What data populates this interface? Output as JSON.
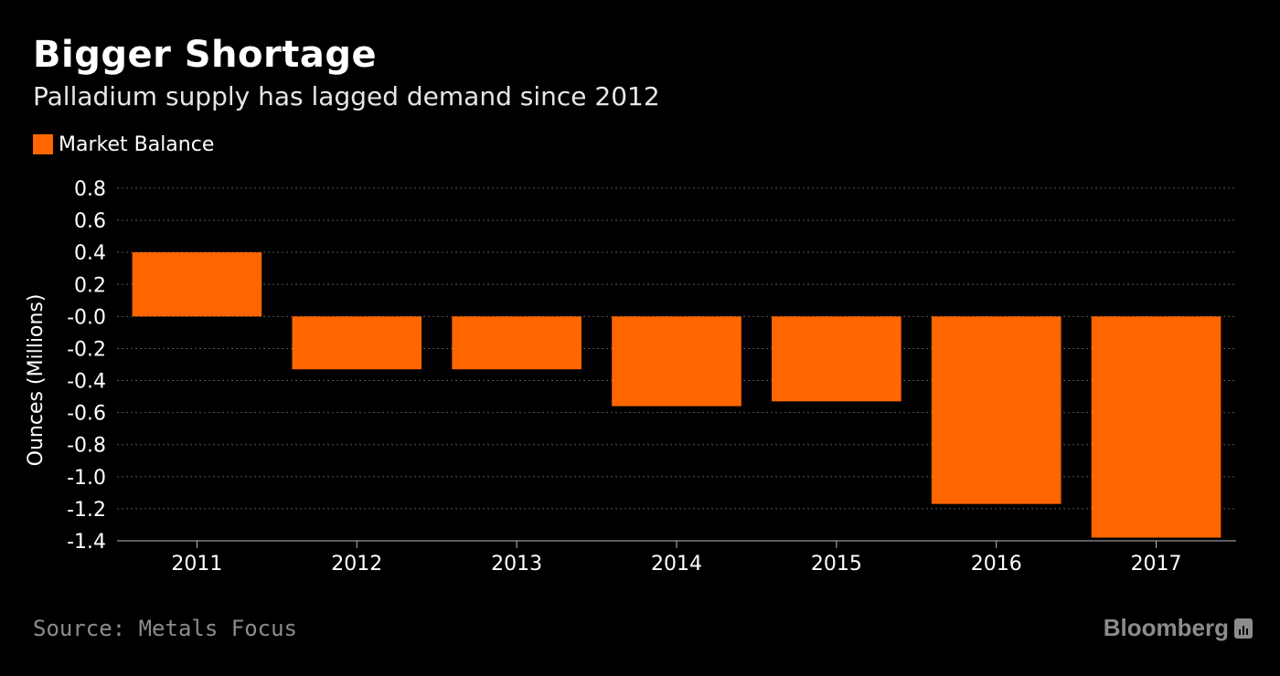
{
  "header": {
    "title": "Bigger Shortage",
    "subtitle": "Palladium supply has lagged demand since 2012"
  },
  "footer": {
    "source": "Source: Metals Focus",
    "brand": "Bloomberg",
    "brand_icon": "bloomberg-chart-icon"
  },
  "colors": {
    "background": "#000000",
    "bar": "#ff6600",
    "grid": "#555555",
    "text": "#ffffff",
    "muted": "#8c8c8c"
  },
  "chart_data": {
    "type": "bar",
    "title": "Bigger Shortage",
    "subtitle": "Palladium supply has lagged demand since 2012",
    "xlabel": "",
    "ylabel": "Ounces (Millions)",
    "categories": [
      "2011",
      "2012",
      "2013",
      "2014",
      "2015",
      "2016",
      "2017"
    ],
    "series": [
      {
        "name": "Market Balance",
        "color": "#ff6600",
        "values": [
          0.4,
          -0.33,
          -0.33,
          -0.56,
          -0.53,
          -1.17,
          -1.38
        ]
      }
    ],
    "ylim": [
      -1.4,
      0.8
    ],
    "yticks": [
      0.8,
      0.6,
      0.4,
      0.2,
      0.0,
      -0.2,
      -0.4,
      -0.6,
      -0.8,
      -1.0,
      -1.2,
      -1.4
    ],
    "ytick_labels": [
      "0.8",
      "0.6",
      "0.4",
      "0.2",
      "-0.0",
      "-0.2",
      "-0.4",
      "-0.6",
      "-0.8",
      "-1.0",
      "-1.2",
      "-1.4"
    ],
    "grid": true,
    "legend": "top-left"
  }
}
